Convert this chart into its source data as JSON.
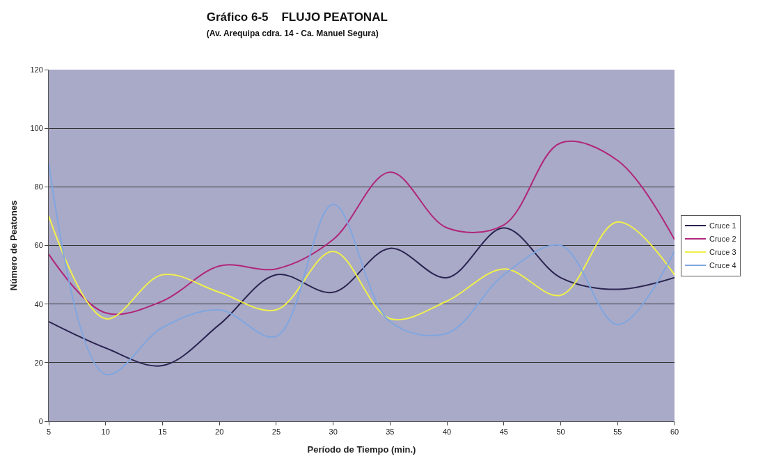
{
  "chart_data": {
    "type": "line",
    "title": "Gráfico 6-5    FLUJO PEATONAL",
    "subtitle": "(Av. Arequipa cdra. 14 - Ca. Manuel Segura)",
    "xlabel": "Período de Tiempo (min.)",
    "ylabel": "Número de Peatones",
    "x": [
      5,
      10,
      15,
      20,
      25,
      30,
      35,
      40,
      45,
      50,
      55,
      60
    ],
    "series": [
      {
        "name": "Cruce 1",
        "color": "#2a2450",
        "values": [
          34,
          25,
          19,
          33,
          50,
          44,
          59,
          49,
          66,
          49,
          45,
          49
        ]
      },
      {
        "name": "Cruce 2",
        "color": "#b0267a",
        "values": [
          57,
          37,
          41,
          53,
          52,
          62,
          85,
          66,
          67,
          95,
          89,
          62
        ]
      },
      {
        "name": "Cruce 3",
        "color": "#f0f04a",
        "values": [
          70,
          35,
          50,
          44,
          38,
          58,
          35,
          41,
          52,
          43,
          68,
          50
        ]
      },
      {
        "name": "Cruce 4",
        "color": "#7fa6e0",
        "values": [
          88,
          16,
          32,
          38,
          29,
          74,
          34,
          30,
          50,
          60,
          33,
          58
        ]
      }
    ],
    "xlim": [
      5,
      60
    ],
    "xticks": [
      5,
      10,
      15,
      20,
      25,
      30,
      35,
      40,
      45,
      50,
      55,
      60
    ],
    "ylim": [
      0,
      120
    ],
    "yticks": [
      0,
      20,
      40,
      60,
      80,
      100,
      120
    ],
    "grid": "y",
    "legend": "right",
    "marker": "none",
    "line_style": "solid"
  }
}
